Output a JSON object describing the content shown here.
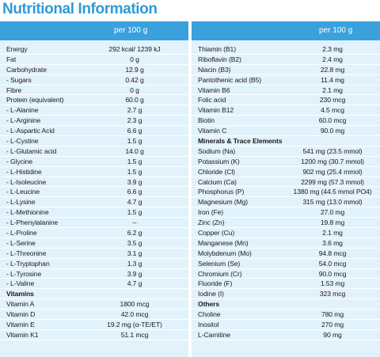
{
  "title": "Nutritional Information",
  "left": {
    "header": "per 100 g",
    "rows": [
      {
        "name": "Energy",
        "value": "292 kcal/ 1239 kJ"
      },
      {
        "name": "Fat",
        "value": "0 g"
      },
      {
        "name": "Carbohydrate",
        "value": "12.9 g"
      },
      {
        "name": " - Sugars",
        "value": "0.42 g"
      },
      {
        "name": "Fibre",
        "value": "0 g"
      },
      {
        "name": "Protein (equivalent)",
        "value": "60.0 g"
      },
      {
        "name": " - L-Alanine",
        "value": "2.7 g"
      },
      {
        "name": " - L-Arginine",
        "value": "2.3 g"
      },
      {
        "name": " - L-Aspartic Acid",
        "value": "6.6 g"
      },
      {
        "name": " - L-Cystine",
        "value": "1.5 g"
      },
      {
        "name": " - L-Glutamic acid",
        "value": "14.0 g"
      },
      {
        "name": " - Glycine",
        "value": "1.5 g"
      },
      {
        "name": " - L-Histidine",
        "value": "1.5 g"
      },
      {
        "name": " - L-Isoleucine",
        "value": "3.9 g"
      },
      {
        "name": " - L-Leucine",
        "value": "6.6 g"
      },
      {
        "name": " - L-Lysine",
        "value": "4.7 g"
      },
      {
        "name": " - L-Methionine",
        "value": "1.5 g"
      },
      {
        "name": " - L-Phenylalanine",
        "value": "–"
      },
      {
        "name": " - L-Proline",
        "value": "6.2 g"
      },
      {
        "name": " - L-Serine",
        "value": "3.5 g"
      },
      {
        "name": " - L-Threonine",
        "value": "3.1 g"
      },
      {
        "name": " - L-Tryptophan",
        "value": "1.3 g"
      },
      {
        "name": " - L-Tyrosine",
        "value": "3.9 g"
      },
      {
        "name": " - L-Valine",
        "value": "4.7 g"
      },
      {
        "name": "Vitamins",
        "value": "",
        "section": true
      },
      {
        "name": "Vitamin A",
        "value": "1800 mcg"
      },
      {
        "name": "Vitamin D",
        "value": "42.0 mcg"
      },
      {
        "name": "Vitamin E",
        "value": "19.2 mg (α-TE/ET)"
      },
      {
        "name": "Vitamin K1",
        "value": "51.1 mcg"
      }
    ]
  },
  "right": {
    "header": "per 100 g",
    "rows": [
      {
        "name": "Thiamin (B1)",
        "value": "2.3 mg"
      },
      {
        "name": "Riboflavin (B2)",
        "value": "2.4 mg"
      },
      {
        "name": "Niacin (B3)",
        "value": "22.8 mg"
      },
      {
        "name": "Pantothenic acid (B5)",
        "value": "11.4 mg"
      },
      {
        "name": "Vitamin B6",
        "value": "2.1 mg"
      },
      {
        "name": "Folic acid",
        "value": "230 mcg"
      },
      {
        "name": "Vitamin B12",
        "value": "4.5 mcg"
      },
      {
        "name": "Biotin",
        "value": "60.0 mcg"
      },
      {
        "name": "Vitamin C",
        "value": "90.0 mg"
      },
      {
        "name": "Minerals & Trace Elements",
        "value": "",
        "section": true
      },
      {
        "name": "Sodium (Na)",
        "value": "541 mg (23.5 mmol)"
      },
      {
        "name": "Potassium (K)",
        "value": "1200 mg (30.7 mmol)"
      },
      {
        "name": "Chloride (Cl)",
        "value": "902 mg (25.4 mmol)"
      },
      {
        "name": "Calcium (Ca)",
        "value": "2299 mg (57.3 mmol)"
      },
      {
        "name": "Phosphorus (P)",
        "value": "1380 mg (44.5 mmol PO4)"
      },
      {
        "name": "Magnesium (Mg)",
        "value": "315 mg (13.0 mmol)"
      },
      {
        "name": "Iron (Fe)",
        "value": "27.0 mg"
      },
      {
        "name": "Zinc (Zn)",
        "value": "19.8 mg"
      },
      {
        "name": "Copper (Cu)",
        "value": "2.1 mg"
      },
      {
        "name": "Manganese (Mn)",
        "value": "3.6 mg"
      },
      {
        "name": "Molybdenum (Mo)",
        "value": "94.8 mcg"
      },
      {
        "name": "Selenium (Se)",
        "value": "54.0 mcg"
      },
      {
        "name": "Chromium (Cr)",
        "value": "90.0 mcg"
      },
      {
        "name": "Fluoride (F)",
        "value": "1.53 mg"
      },
      {
        "name": "Iodine (I)",
        "value": "323 mcg"
      },
      {
        "name": "Others",
        "value": "",
        "section": true
      },
      {
        "name": "Choline",
        "value": "780 mg"
      },
      {
        "name": "Inositol",
        "value": "270 mg"
      },
      {
        "name": "L-Carnitine",
        "value": "90 mg"
      }
    ]
  }
}
